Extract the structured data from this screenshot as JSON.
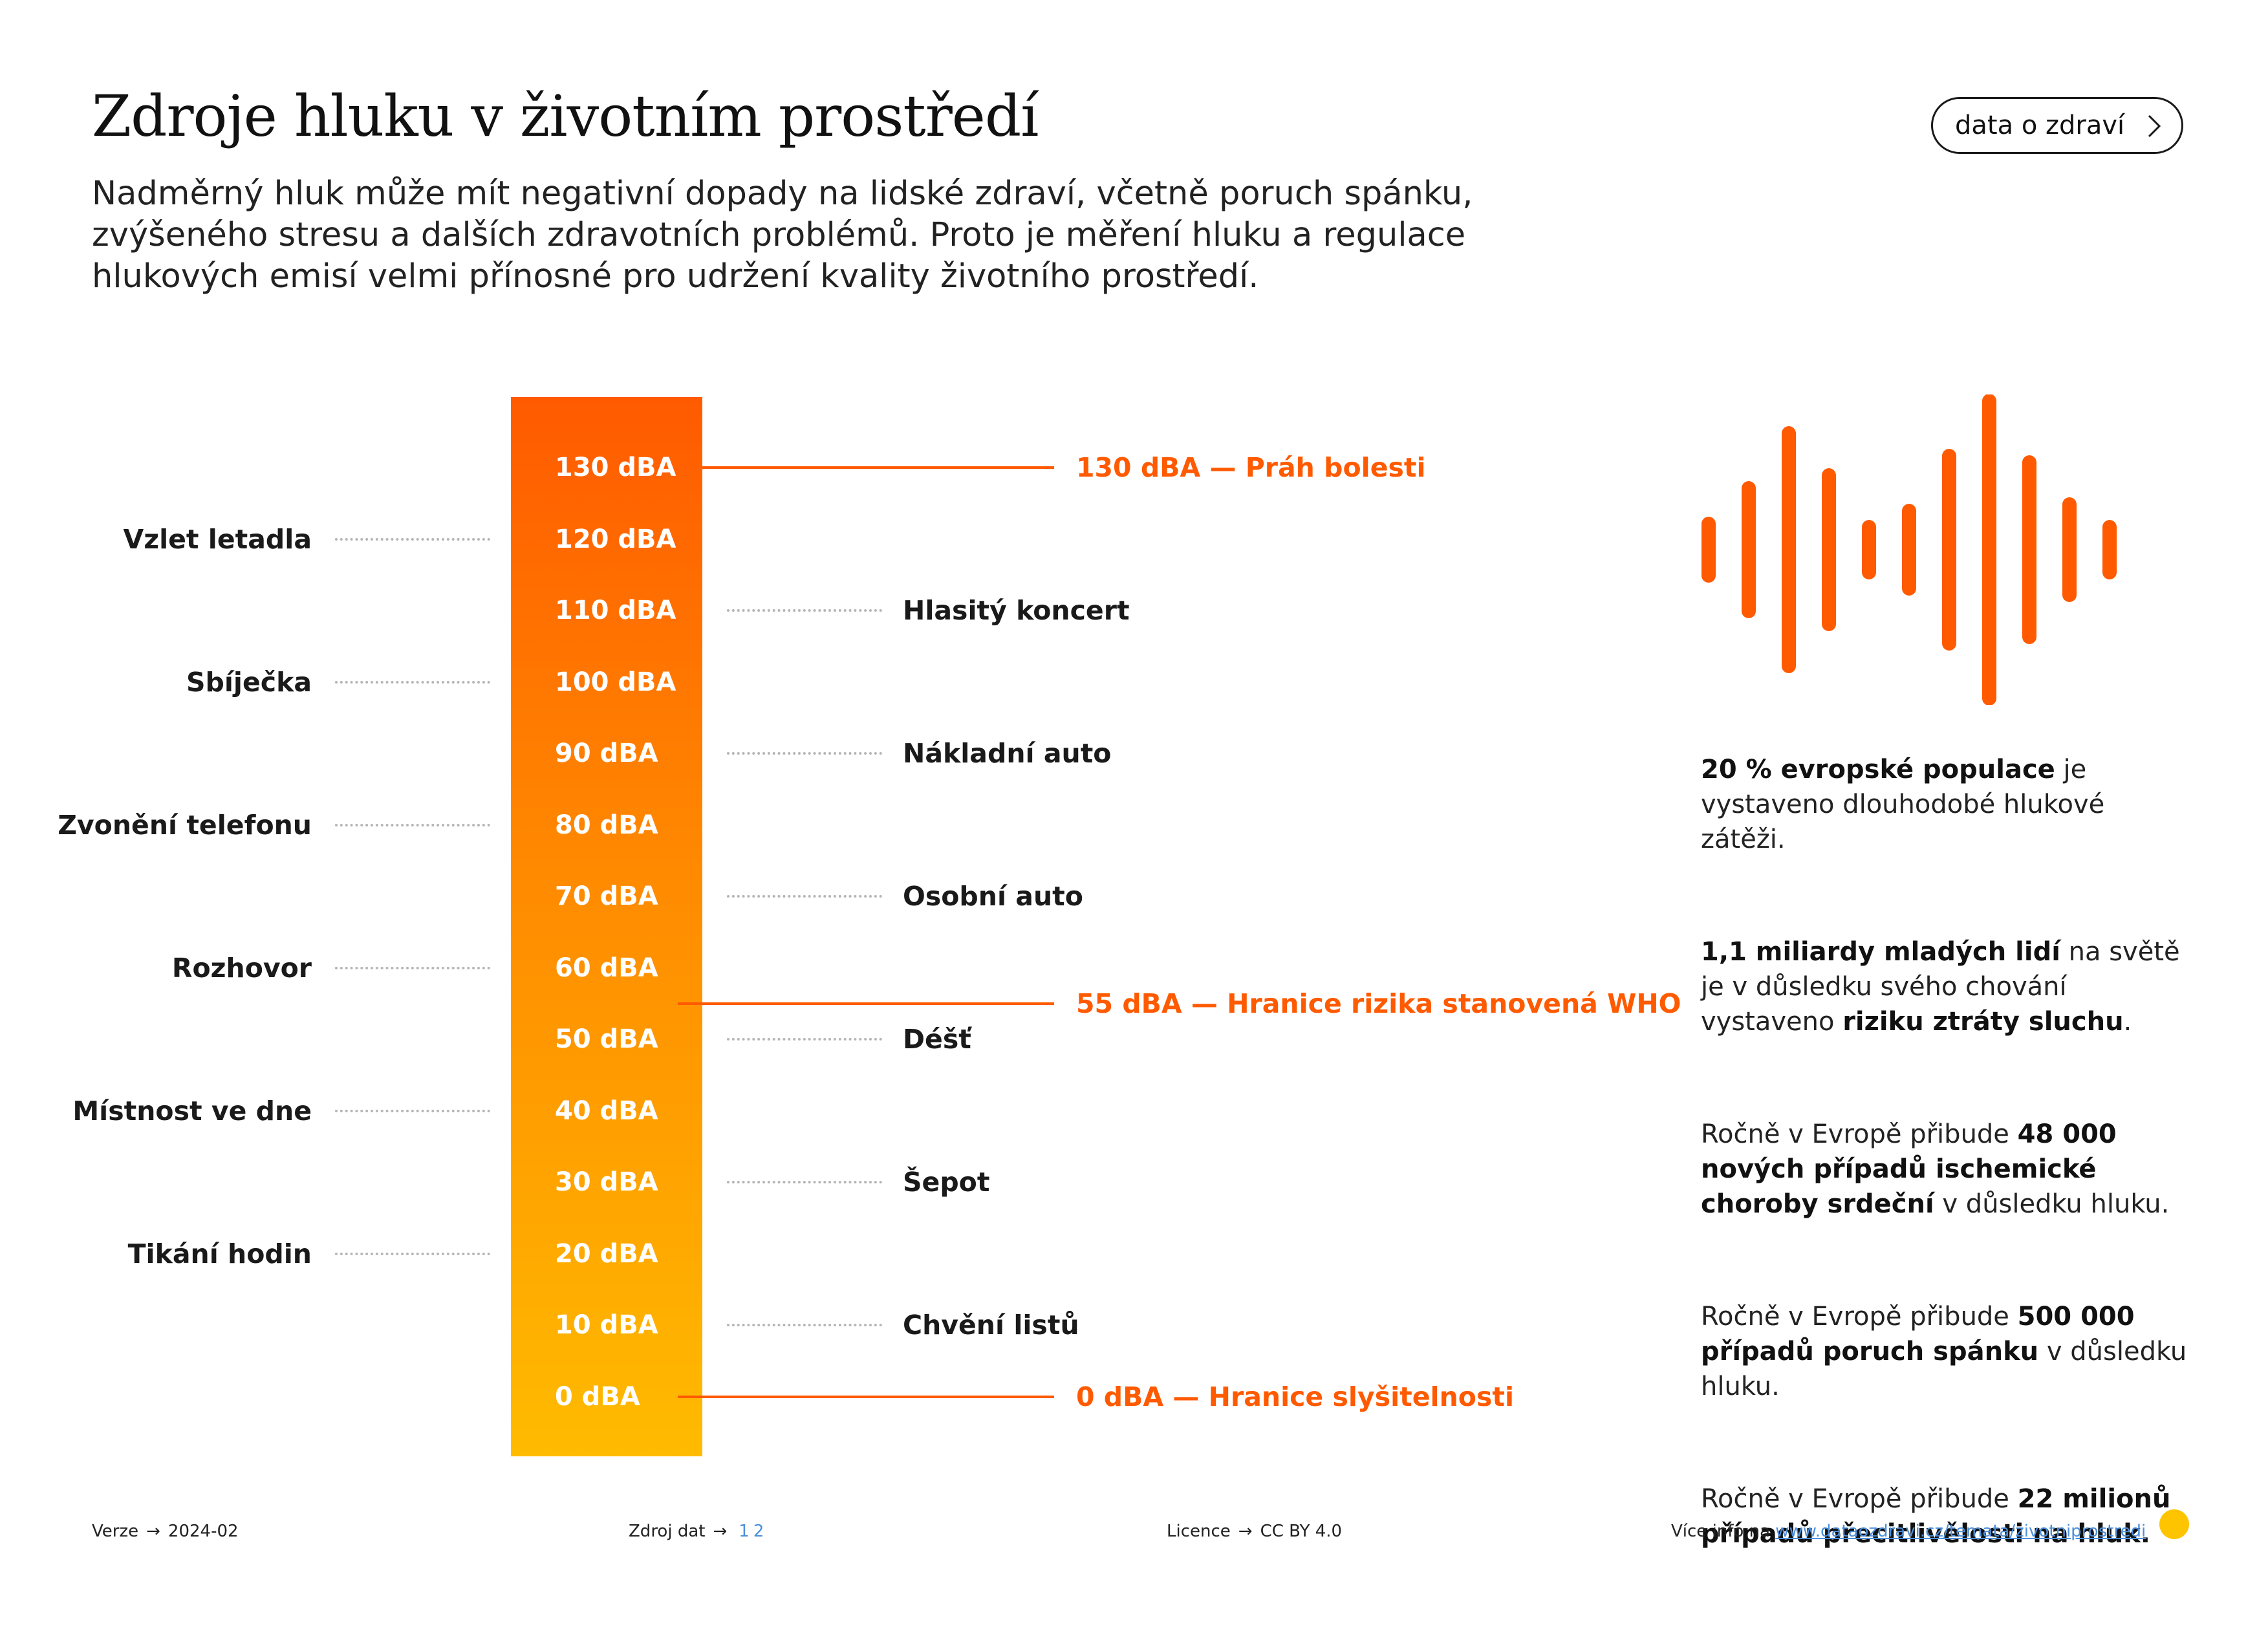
{
  "header": {
    "title": "Zdroje hluku v životním prostředí",
    "intro_lines": [
      "Nadměrný hluk může mít negativní dopady na lidské zdraví, včetně poruch spánku,",
      "zvýšeného stresu a dalších zdravotních problémů. Proto je měření hluku a regulace",
      "hlukových emisí velmi přínosné pro udržení kvality životního prostředí."
    ],
    "pill_label": "data o zdraví"
  },
  "scale": {
    "levels": [
      "130 dBA",
      "120 dBA",
      "110 dBA",
      "100 dBA",
      "90 dBA",
      "80 dBA",
      "70 dBA",
      "60 dBA",
      "50 dBA",
      "40 dBA",
      "30 dBA",
      "20 dBA",
      "10 dBA",
      "0 dBA"
    ],
    "level_values": [
      130,
      120,
      110,
      100,
      90,
      80,
      70,
      60,
      50,
      40,
      30,
      20,
      10,
      0
    ],
    "gradient_colors": [
      "#ff5a00",
      "#ff8a00",
      "#ffbb00"
    ],
    "left_sources": [
      {
        "label": "Vzlet letadla",
        "db": 120
      },
      {
        "label": "Sbíječka",
        "db": 100
      },
      {
        "label": "Zvonění telefonu",
        "db": 80
      },
      {
        "label": "Rozhovor",
        "db": 60
      },
      {
        "label": "Místnost ve dne",
        "db": 40
      },
      {
        "label": "Tikání hodin",
        "db": 20
      }
    ],
    "right_sources": [
      {
        "label": "Hlasitý koncert",
        "db": 110
      },
      {
        "label": "Nákladní auto",
        "db": 90
      },
      {
        "label": "Osobní auto",
        "db": 70
      },
      {
        "label": "Déšť",
        "db": 50
      },
      {
        "label": "Šepot",
        "db": 30
      },
      {
        "label": "Chvění listů",
        "db": 10
      }
    ],
    "thresholds": [
      {
        "label": "130 dBA — Práh bolesti",
        "db": 130
      },
      {
        "label": "55 dBA — Hranice rizika stanovená WHO",
        "db": 55
      },
      {
        "label": "0 dBA — Hranice slyšitelnosti",
        "db": 0
      }
    ],
    "accent_color": "#ff5a00"
  },
  "wave_icon": "sound-wave-icon",
  "facts": [
    [
      {
        "t": "20 % evropské populace",
        "b": true
      },
      {
        "t": " je vystaveno dlouhodobé hlukové zátěži.",
        "b": false
      }
    ],
    [
      {
        "t": "1,1 miliardy mladých lidí",
        "b": true
      },
      {
        "t": " na světě je v důsledku svého chování vystaveno ",
        "b": false
      },
      {
        "t": "riziku ztráty sluchu",
        "b": true
      },
      {
        "t": ".",
        "b": false
      }
    ],
    [
      {
        "t": "Ročně v Evropě přibude ",
        "b": false
      },
      {
        "t": "48 000 nových případů ischemické choroby srdeční",
        "b": true
      },
      {
        "t": " v důsledku hluku.",
        "b": false
      }
    ],
    [
      {
        "t": "Ročně v Evropě přibude ",
        "b": false
      },
      {
        "t": "500 000 případů poruch spánku",
        "b": true
      },
      {
        "t": " v důsledku hluku.",
        "b": false
      }
    ],
    [
      {
        "t": "Ročně v Evropě přibude ",
        "b": false
      },
      {
        "t": "22 milionů případů přecitlivělosti na hluk.",
        "b": true
      }
    ]
  ],
  "footer": {
    "version_label": "Verze",
    "version_value": "2024-02",
    "source_label": "Zdroj dat",
    "source_links": [
      "1",
      "2"
    ],
    "license_label": "Licence",
    "license_value": "CC BY 4.0",
    "more_info_label": "Více info na",
    "more_info_url": "www.dataozdravi.cz/temata/zivotniprostredi",
    "arrow": "→",
    "logo_icon": "brand-logo-icon"
  }
}
